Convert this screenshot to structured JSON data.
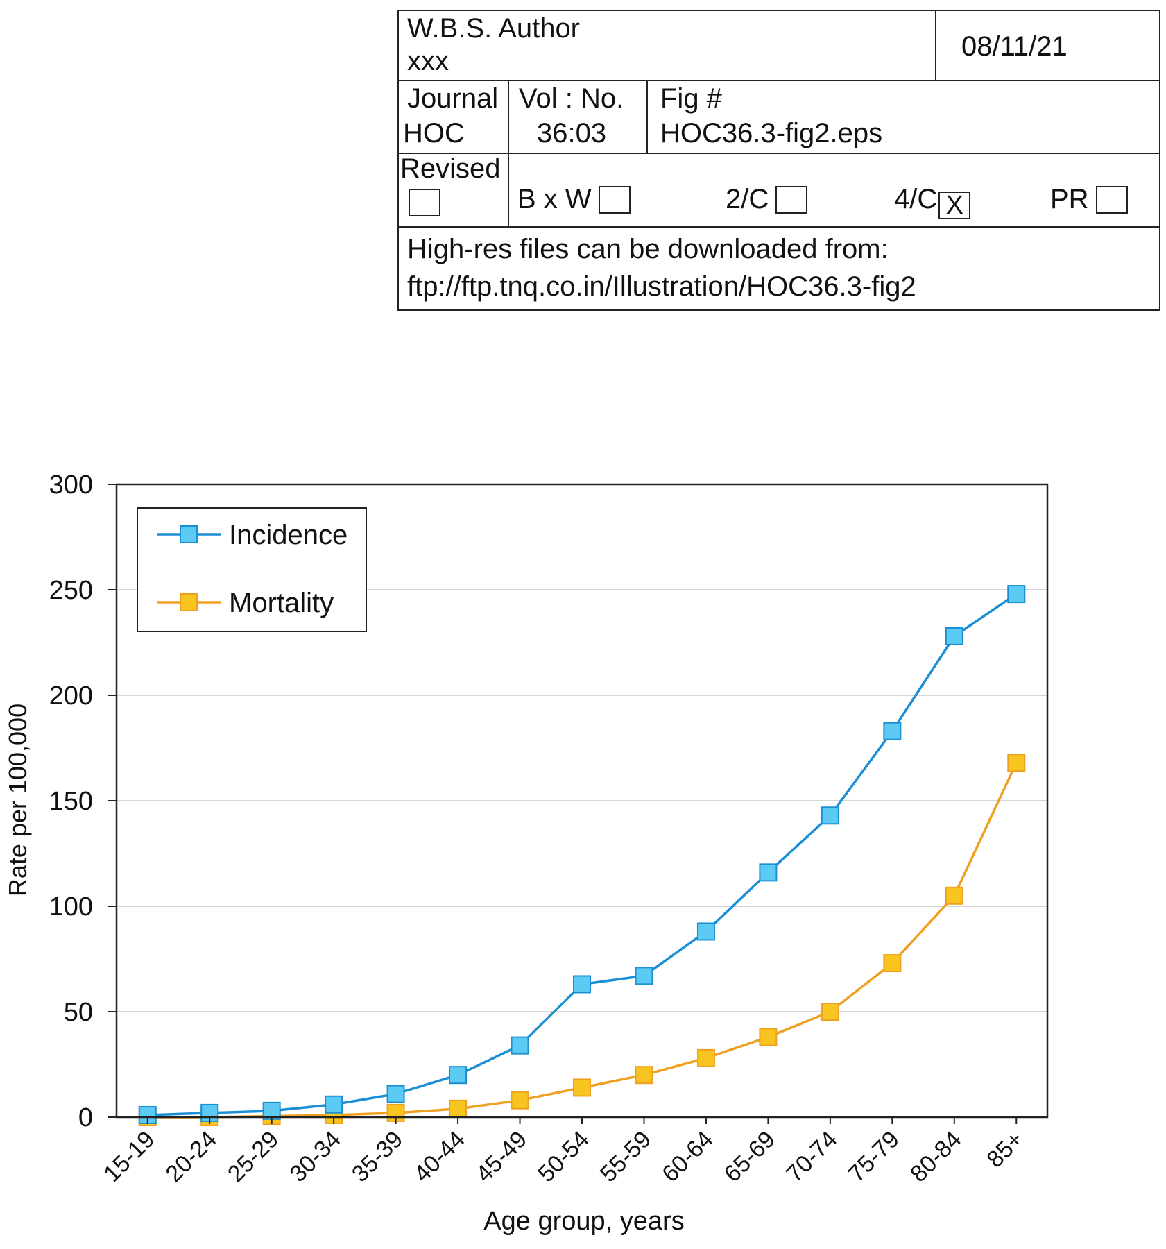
{
  "stamp": {
    "author_label": "W.B.S. Author",
    "author_value": "xxx",
    "date": "08/11/21",
    "journal_label": "Journal",
    "journal_value": "HOC",
    "volno_label": "Vol : No.",
    "volno_value": "36:03",
    "fig_label": "Fig #",
    "fig_value": "HOC36.3-fig2.eps",
    "revised_label": "Revised",
    "bw_label": "B x W",
    "twoc_label": "2/C",
    "fourc_label": "4/C",
    "fourc_mark": "X",
    "pr_label": "PR",
    "download_label": "High-res files can be downloaded from:",
    "download_url": "ftp://ftp.tnq.co.in/Illustration/HOC36.3-fig2"
  },
  "chart_data": {
    "type": "line",
    "xlabel": "Age group, years",
    "ylabel": "Rate per 100,000",
    "ylim": [
      0,
      300
    ],
    "yticks": [
      0,
      50,
      100,
      150,
      200,
      250,
      300
    ],
    "grid": "horizontal",
    "legend_position": "top-left",
    "categories": [
      "15-19",
      "20-24",
      "25-29",
      "30-34",
      "35-39",
      "40-44",
      "45-49",
      "50-54",
      "55-59",
      "60-64",
      "65-69",
      "70-74",
      "75-79",
      "80-84",
      "85+"
    ],
    "series": [
      {
        "name": "Incidence",
        "color": "#1a8fd6",
        "marker_fill": "#5ccaf2",
        "values": [
          1,
          2,
          3,
          6,
          11,
          20,
          34,
          63,
          67,
          88,
          116,
          143,
          183,
          228,
          248
        ]
      },
      {
        "name": "Mortality",
        "color": "#f0a020",
        "marker_fill": "#f8c520",
        "values": [
          0,
          0,
          0.5,
          1,
          2,
          4,
          8,
          14,
          20,
          28,
          38,
          50,
          73,
          105,
          168
        ]
      }
    ]
  }
}
